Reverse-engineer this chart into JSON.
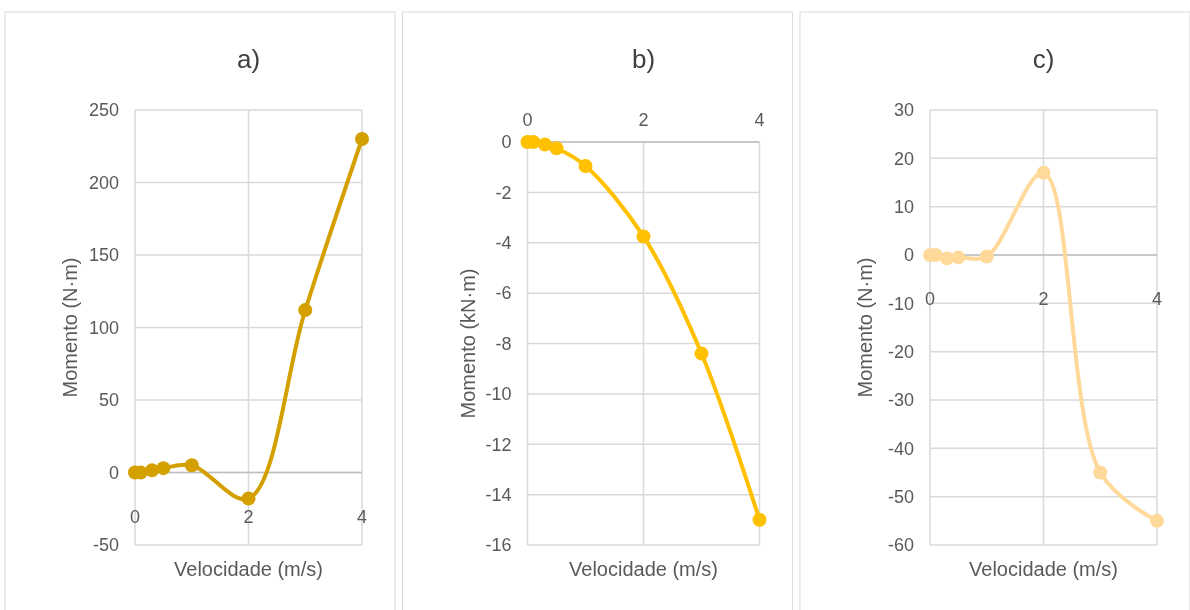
{
  "chart_data": [
    {
      "type": "line",
      "title": "a)",
      "xlabel": "Velocidade (m/s)",
      "ylabel": "Momento (N·m)",
      "x": [
        0,
        0.1,
        0.3,
        0.5,
        1,
        2,
        3,
        4
      ],
      "xlim": [
        0,
        4
      ],
      "xticks": [
        0,
        2,
        4
      ],
      "ylim": [
        -50,
        250
      ],
      "yticks": [
        -50,
        0,
        50,
        100,
        150,
        200,
        250
      ],
      "grid": true,
      "marker": "circle",
      "series": [
        {
          "color": "#d4a000",
          "values": [
            0,
            0,
            1.5,
            3,
            5,
            -18,
            112,
            230
          ]
        }
      ]
    },
    {
      "type": "line",
      "title": "b)",
      "xlabel": "Velocidade (m/s)",
      "ylabel": "Momento (kN·m)",
      "x": [
        0,
        0.1,
        0.3,
        0.5,
        1,
        2,
        3,
        4
      ],
      "xlim": [
        0,
        4
      ],
      "xticks": [
        0,
        2,
        4
      ],
      "ylim": [
        -16,
        0
      ],
      "yticks": [
        -16,
        -14,
        -12,
        -10,
        -8,
        -6,
        -4,
        -2,
        0
      ],
      "grid": true,
      "marker": "circle",
      "series": [
        {
          "color": "#ffc000",
          "values": [
            0,
            0,
            -0.1,
            -0.25,
            -0.95,
            -3.75,
            -8.4,
            -15
          ]
        }
      ]
    },
    {
      "type": "line",
      "title": "c)",
      "xlabel": "Velocidade (m/s)",
      "ylabel": "Momento (N·m)",
      "x": [
        0,
        0.1,
        0.3,
        0.5,
        1,
        2,
        3,
        4
      ],
      "xlim": [
        0,
        4
      ],
      "xticks": [
        0,
        2,
        4
      ],
      "ylim": [
        -60,
        30
      ],
      "yticks": [
        -60,
        -50,
        -40,
        -30,
        -20,
        -10,
        0,
        10,
        20,
        30
      ],
      "grid": true,
      "marker": "circle",
      "series": [
        {
          "color": "#ffd999",
          "values": [
            0,
            0,
            -0.7,
            -0.5,
            -0.3,
            17,
            -45,
            -55
          ]
        }
      ]
    }
  ]
}
